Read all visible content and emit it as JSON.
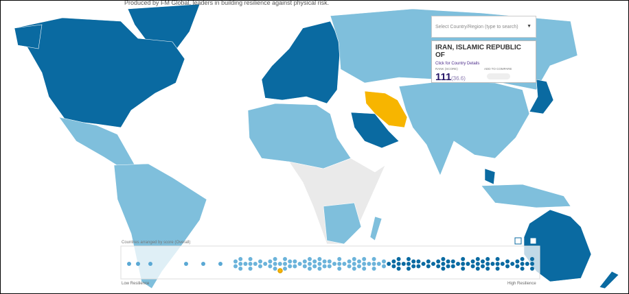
{
  "header": {
    "credit": "Produced by FM Global, leaders in building resilience against physical risk."
  },
  "search": {
    "placeholder": "Select Country/Region (type to search)"
  },
  "country_card": {
    "name": "IRAN, ISLAMIC REPUBLIC OF",
    "details_link": "Click for Country Details",
    "rank_label": "RANK (SCORE)",
    "rank": "111",
    "score": "(36.6)",
    "compare_label": "ADD TO COMPARE"
  },
  "score_strip": {
    "title": "Countries arranged by score (Overall)",
    "low_label": "Low Resilience",
    "high_label": "High Resilience"
  }
}
